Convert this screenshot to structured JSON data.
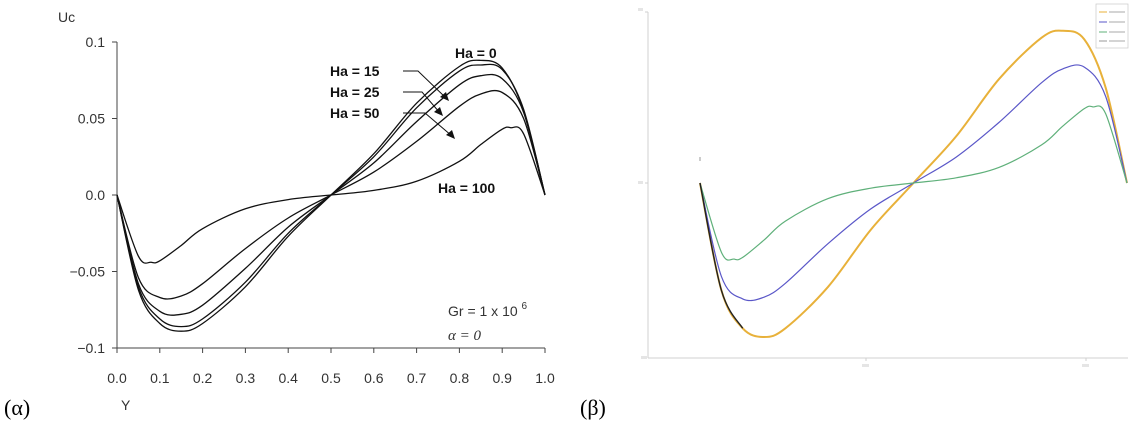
{
  "panel_labels": {
    "a": "(α)",
    "b": "(β)"
  },
  "chart_data": [
    {
      "type": "line",
      "xlabel": "Y",
      "ylabel": "Uc",
      "xlim": [
        0,
        1
      ],
      "ylim": [
        -0.1,
        0.1
      ],
      "x_ticks": [
        "0.0",
        "0.1",
        "0.2",
        "0.3",
        "0.4",
        "0.5",
        "0.6",
        "0.7",
        "0.8",
        "0.9",
        "1.0"
      ],
      "y_ticks": [
        "0.1",
        "0.05",
        "0.0",
        "−0.05",
        "−0.1"
      ],
      "grid": false,
      "series": [
        {
          "name": "Ha = 0",
          "x": [
            0,
            0.05,
            0.1,
            0.15,
            0.2,
            0.3,
            0.4,
            0.5,
            0.6,
            0.7,
            0.8,
            0.85,
            0.9,
            0.95,
            1.0
          ],
          "y": [
            0,
            -0.062,
            -0.084,
            -0.089,
            -0.084,
            -0.06,
            -0.027,
            0,
            0.027,
            0.06,
            0.084,
            0.088,
            0.083,
            0.055,
            0
          ]
        },
        {
          "name": "Ha = 15",
          "x": [
            0,
            0.05,
            0.1,
            0.15,
            0.2,
            0.3,
            0.4,
            0.5,
            0.6,
            0.7,
            0.8,
            0.85,
            0.9,
            0.95,
            1.0
          ],
          "y": [
            0,
            -0.06,
            -0.081,
            -0.086,
            -0.081,
            -0.057,
            -0.025,
            0,
            0.025,
            0.057,
            0.081,
            0.085,
            0.082,
            0.056,
            0
          ]
        },
        {
          "name": "Ha = 25",
          "x": [
            0,
            0.05,
            0.1,
            0.15,
            0.2,
            0.3,
            0.4,
            0.5,
            0.6,
            0.7,
            0.8,
            0.85,
            0.9,
            0.95,
            1.0
          ],
          "y": [
            0,
            -0.058,
            -0.076,
            -0.078,
            -0.072,
            -0.048,
            -0.021,
            0,
            0.021,
            0.048,
            0.072,
            0.078,
            0.076,
            0.054,
            0
          ]
        },
        {
          "name": "Ha = 50",
          "x": [
            0,
            0.05,
            0.1,
            0.15,
            0.2,
            0.3,
            0.4,
            0.5,
            0.6,
            0.7,
            0.8,
            0.85,
            0.9,
            0.95,
            1.0
          ],
          "y": [
            0,
            -0.054,
            -0.067,
            -0.066,
            -0.058,
            -0.035,
            -0.015,
            0,
            0.015,
            0.035,
            0.058,
            0.066,
            0.067,
            0.05,
            0
          ]
        },
        {
          "name": "Ha = 100",
          "x": [
            0,
            0.05,
            0.08,
            0.1,
            0.15,
            0.2,
            0.3,
            0.4,
            0.5,
            0.6,
            0.7,
            0.8,
            0.85,
            0.9,
            0.92,
            0.95,
            1.0
          ],
          "y": [
            0,
            -0.04,
            -0.044,
            -0.043,
            -0.033,
            -0.022,
            -0.009,
            -0.003,
            0,
            0.003,
            0.009,
            0.022,
            0.033,
            0.043,
            0.044,
            0.04,
            0
          ]
        }
      ],
      "annotations": [
        "Ha = 0",
        "Ha = 15",
        "Ha = 25",
        "Ha = 50",
        "Ha = 100"
      ],
      "notes": {
        "gr": "Gr = 1 x 10",
        "gr_exp": "6",
        "alpha": "α  = 0"
      }
    },
    {
      "type": "line",
      "xlim": [
        0,
        1
      ],
      "ylim": [
        -1,
        1
      ],
      "grid": false,
      "legend_position": "top-right",
      "colors": [
        "#e8b13a",
        "#5a57c8",
        "#5fb07a"
      ],
      "series": [
        {
          "color": "#e8b13a",
          "x": [
            0,
            0.05,
            0.1,
            0.15,
            0.2,
            0.3,
            0.4,
            0.5,
            0.6,
            0.7,
            0.8,
            0.85,
            0.9,
            0.95,
            1.0
          ],
          "y": [
            0,
            -0.62,
            -0.84,
            -0.89,
            -0.84,
            -0.6,
            -0.27,
            0,
            0.27,
            0.6,
            0.84,
            0.88,
            0.83,
            0.55,
            0
          ]
        },
        {
          "color": "#5a57c8",
          "x": [
            0,
            0.05,
            0.1,
            0.15,
            0.2,
            0.3,
            0.4,
            0.5,
            0.6,
            0.7,
            0.8,
            0.85,
            0.9,
            0.95,
            1.0
          ],
          "y": [
            0,
            -0.54,
            -0.67,
            -0.66,
            -0.58,
            -0.35,
            -0.15,
            0,
            0.15,
            0.35,
            0.58,
            0.66,
            0.67,
            0.5,
            0
          ]
        },
        {
          "color": "#5fb07a",
          "x": [
            0,
            0.05,
            0.08,
            0.1,
            0.15,
            0.2,
            0.3,
            0.4,
            0.5,
            0.6,
            0.7,
            0.8,
            0.85,
            0.9,
            0.92,
            0.95,
            1.0
          ],
          "y": [
            0,
            -0.4,
            -0.44,
            -0.43,
            -0.33,
            -0.22,
            -0.09,
            -0.03,
            0,
            0.03,
            0.09,
            0.22,
            0.33,
            0.43,
            0.44,
            0.4,
            0
          ]
        }
      ]
    }
  ]
}
